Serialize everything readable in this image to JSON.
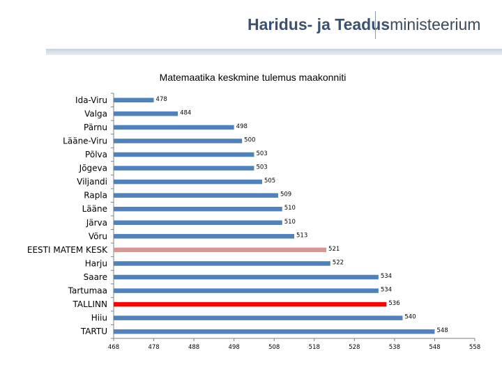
{
  "header": {
    "logo_part1": "Haridus- ja Teadus",
    "logo_part2": "ministeerium"
  },
  "colors": {
    "default_bar": "#4f81bd",
    "average_bar": "#d99694",
    "tallinn_bar": "#ff0000"
  },
  "chart_data": {
    "type": "bar",
    "orientation": "horizontal",
    "title": "Matemaatika keskmine tulemus maakonniti",
    "xlabel": "",
    "ylabel": "",
    "xlim": [
      468,
      558
    ],
    "x_ticks": [
      468,
      478,
      488,
      498,
      508,
      518,
      528,
      538,
      548,
      558
    ],
    "grid": false,
    "legend": "none",
    "categories": [
      "Ida-Viru",
      "Valga",
      "Pärnu",
      "Lääne-Viru",
      "Põlva",
      "Jõgeva",
      "Viljandi",
      "Rapla",
      "Lääne",
      "Järva",
      "Võru",
      "EESTI MATEM KESK",
      "Harju",
      "Saare",
      "Tartumaa",
      "TALLINN",
      "Hiiu",
      "TARTU"
    ],
    "values": [
      478,
      484,
      498,
      500,
      503,
      503,
      505,
      509,
      510,
      510,
      513,
      521,
      522,
      534,
      534,
      536,
      540,
      548
    ],
    "highlight": {
      "EESTI MATEM KESK": "average_bar",
      "TALLINN": "tallinn_bar"
    }
  }
}
